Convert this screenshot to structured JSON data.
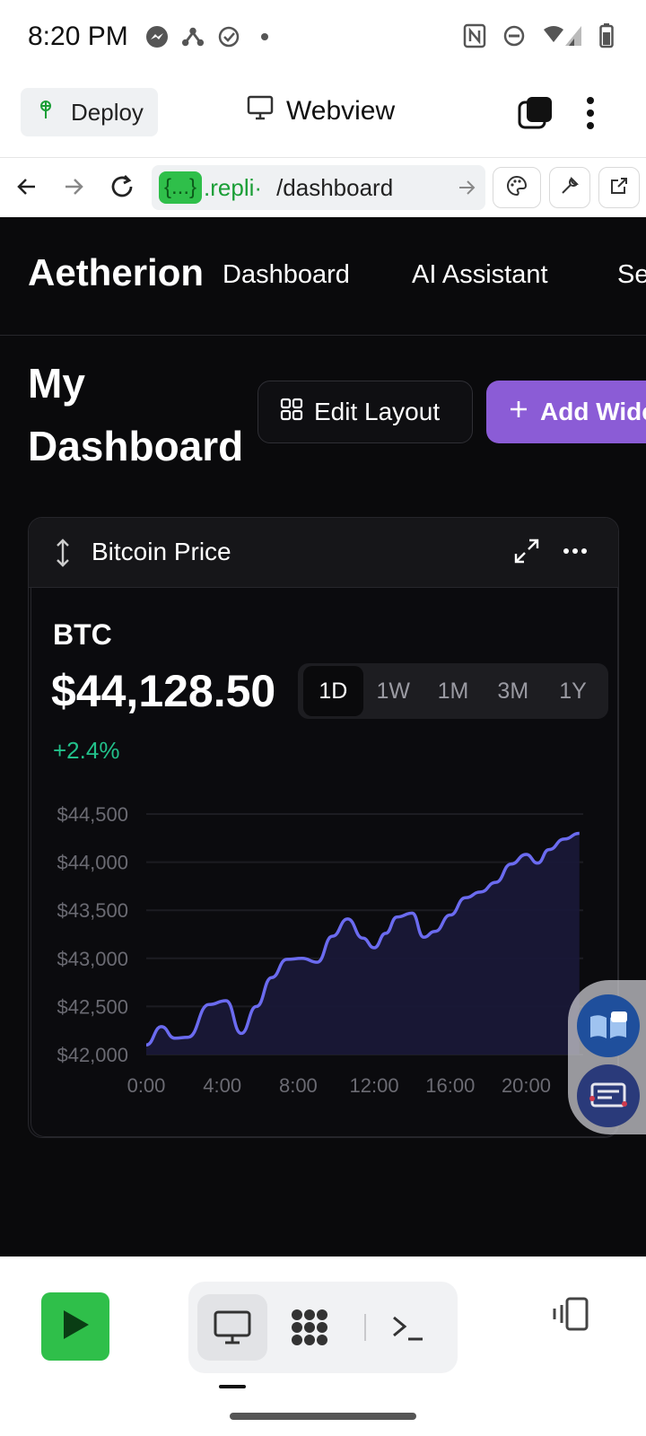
{
  "status_bar": {
    "time": "8:20 PM"
  },
  "header": {
    "deploy_label": "Deploy",
    "title": "Webview"
  },
  "url_bar": {
    "badge": "{...}",
    "host": ".repli·",
    "path": "/dashboard"
  },
  "app": {
    "brand": "Aetherion",
    "nav": [
      "Dashboard",
      "AI Assistant",
      "Se"
    ],
    "page_title": "My Dashboard",
    "edit_layout_label": "Edit Layout",
    "add_widget_label": "Add Wide",
    "widget": {
      "title": "Bitcoin Price",
      "symbol": "BTC",
      "price": "$44,128.50",
      "change": "+2.4%",
      "ranges": [
        "1D",
        "1W",
        "1M",
        "3M",
        "1Y"
      ],
      "active_range": "1D"
    }
  },
  "colors": {
    "accent": "#8b5cd6",
    "positive": "#22c08a",
    "line": "#6b6bf0",
    "run": "#2fbf4a"
  },
  "chart_data": {
    "type": "area",
    "title": "",
    "xlabel": "",
    "ylabel": "",
    "ylim": [
      42000,
      44500
    ],
    "yticks": [
      "$44,500",
      "$44,000",
      "$43,500",
      "$43,000",
      "$42,500",
      "$42,000"
    ],
    "ytick_values": [
      44500,
      44000,
      43500,
      43000,
      42500,
      42000
    ],
    "xticks": [
      "0:00",
      "4:00",
      "8:00",
      "12:00",
      "16:00",
      "20:00"
    ],
    "xtick_values": [
      0,
      4,
      8,
      12,
      16,
      20
    ],
    "xlim": [
      0,
      23
    ],
    "grid": true,
    "x": [
      0,
      0.8,
      1.5,
      2.2,
      3.3,
      4.2,
      5,
      5.8,
      6.6,
      7.4,
      8.2,
      9,
      9.8,
      10.6,
      11.4,
      12,
      12.6,
      13.2,
      14,
      14.6,
      15.2,
      16,
      16.8,
      17.6,
      18.4,
      19.2,
      20,
      20.6,
      21.2,
      22,
      22.8
    ],
    "values": [
      42100,
      42290,
      42170,
      42180,
      42520,
      42560,
      42220,
      42500,
      42800,
      42990,
      43000,
      42960,
      43230,
      43410,
      43210,
      43110,
      43260,
      43430,
      43470,
      43220,
      43280,
      43450,
      43630,
      43690,
      43790,
      43980,
      44080,
      43990,
      44130,
      44240,
      44300
    ]
  }
}
